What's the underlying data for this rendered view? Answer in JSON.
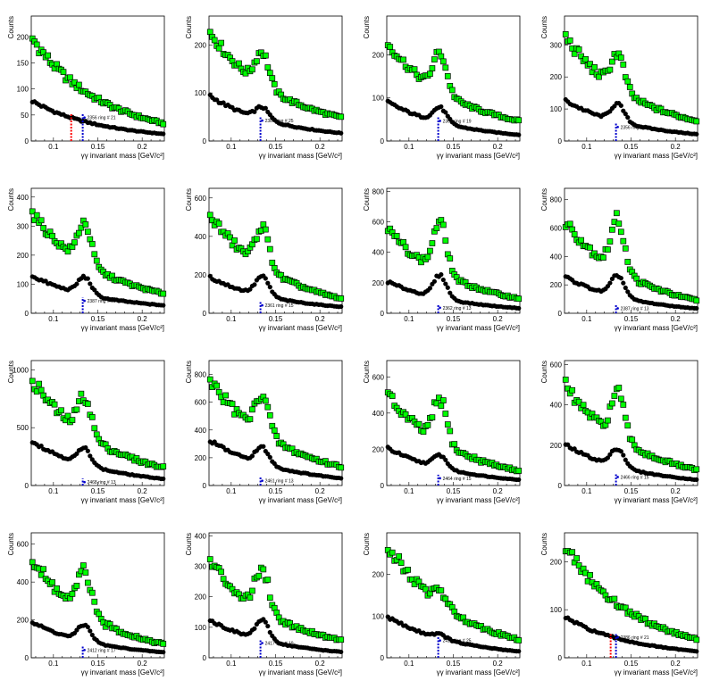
{
  "common": {
    "xlabel": "γγ invariant mass [GeV/c²]",
    "ylabel": "Counts",
    "xlim": [
      0.075,
      0.225
    ],
    "xticks": [
      0.1,
      0.15,
      0.2
    ],
    "xticklabels": [
      "0.1",
      "0.15",
      "0.2"
    ],
    "colors": {
      "upper": "#00ff00",
      "lower": "#000000",
      "marker_red": "#ff0000",
      "marker_blue": "#0000cc"
    }
  },
  "chart_data": [
    {
      "type": "scatter",
      "ylim": [
        0,
        240
      ],
      "yticks": [
        0,
        50,
        100,
        150,
        200
      ],
      "upper": {
        "base": 200,
        "end": 35,
        "peak": 0,
        "noise": 12
      },
      "lower": {
        "base": 78,
        "end": 14,
        "peak": 0
      },
      "annotation": "2356  ring # 21",
      "markers": [
        {
          "x": 0.12,
          "color": "red"
        },
        {
          "x": 0.133,
          "color": "blue"
        }
      ],
      "marker_height": 52
    },
    {
      "type": "scatter",
      "ylim": [
        0,
        260
      ],
      "yticks": [
        0,
        100,
        200
      ],
      "upper": {
        "base": 230,
        "end": 50,
        "peak": 70,
        "noise": 10
      },
      "lower": {
        "base": 95,
        "end": 17,
        "peak": 25
      },
      "annotation": "2386  ring # 25",
      "markers": [
        {
          "x": 0.133,
          "color": "blue"
        }
      ],
      "marker_height": 50
    },
    {
      "type": "scatter",
      "ylim": [
        0,
        290
      ],
      "yticks": [
        0,
        100,
        200
      ],
      "upper": {
        "base": 230,
        "end": 48,
        "peak": 90,
        "noise": 10
      },
      "lower": {
        "base": 92,
        "end": 15,
        "peak": 35
      },
      "annotation": "2360  ring # 19",
      "markers": [
        {
          "x": 0.133,
          "color": "blue"
        }
      ],
      "marker_height": 55
    },
    {
      "type": "scatter",
      "ylim": [
        0,
        390
      ],
      "yticks": [
        0,
        100,
        200,
        300
      ],
      "upper": {
        "base": 330,
        "end": 65,
        "peak": 110,
        "noise": 12
      },
      "lower": {
        "base": 128,
        "end": 22,
        "peak": 55
      },
      "annotation": "2356  ring # 17",
      "markers": [
        {
          "x": 0.133,
          "color": "blue"
        }
      ],
      "marker_height": 55
    },
    {
      "type": "scatter",
      "ylim": [
        0,
        430
      ],
      "yticks": [
        0,
        100,
        200,
        300,
        400
      ],
      "upper": {
        "base": 350,
        "end": 70,
        "peak": 140,
        "noise": 10
      },
      "lower": {
        "base": 130,
        "end": 28,
        "peak": 60
      },
      "annotation": "2387  ring # 15",
      "markers": [
        {
          "x": 0.133,
          "color": "blue"
        }
      ],
      "marker_height": 55
    },
    {
      "type": "scatter",
      "ylim": [
        0,
        650
      ],
      "yticks": [
        0,
        200,
        400,
        600
      ],
      "upper": {
        "base": 520,
        "end": 80,
        "peak": 210,
        "noise": 12
      },
      "lower": {
        "base": 190,
        "end": 35,
        "peak": 100
      },
      "annotation": "2361  ring # 15",
      "markers": [
        {
          "x": 0.133,
          "color": "blue"
        }
      ],
      "marker_height": 60
    },
    {
      "type": "scatter",
      "ylim": [
        0,
        820
      ],
      "yticks": [
        0,
        200,
        400,
        600,
        800
      ],
      "upper": {
        "base": 560,
        "end": 100,
        "peak": 330,
        "noise": 12
      },
      "lower": {
        "base": 210,
        "end": 35,
        "peak": 150
      },
      "annotation": "2362  ring # 13",
      "markers": [
        {
          "x": 0.133,
          "color": "blue"
        }
      ],
      "marker_height": 60
    },
    {
      "type": "scatter",
      "ylim": [
        0,
        880
      ],
      "yticks": [
        0,
        200,
        400,
        600,
        800
      ],
      "upper": {
        "base": 660,
        "end": 95,
        "peak": 360,
        "noise": 14
      },
      "lower": {
        "base": 260,
        "end": 35,
        "peak": 150
      },
      "annotation": "2387  ring # 13",
      "markers": [
        {
          "x": 0.133,
          "color": "blue"
        }
      ],
      "marker_height": 60
    },
    {
      "type": "scatter",
      "ylim": [
        0,
        1080
      ],
      "yticks": [
        0,
        500,
        1000
      ],
      "upper": {
        "base": 930,
        "end": 160,
        "peak": 330,
        "noise": 14
      },
      "lower": {
        "base": 390,
        "end": 60,
        "peak": 140
      },
      "annotation": "2468  ring # 13",
      "markers": [
        {
          "x": 0.133,
          "color": "blue"
        }
      ],
      "marker_height": 60
    },
    {
      "type": "scatter",
      "ylim": [
        0,
        900
      ],
      "yticks": [
        0,
        200,
        400,
        600,
        800
      ],
      "upper": {
        "base": 780,
        "end": 140,
        "peak": 290,
        "noise": 14
      },
      "lower": {
        "base": 330,
        "end": 55,
        "peak": 120
      },
      "annotation": "2461  ring # 13",
      "markers": [
        {
          "x": 0.133,
          "color": "blue"
        }
      ],
      "marker_height": 60
    },
    {
      "type": "scatter",
      "ylim": [
        0,
        690
      ],
      "yticks": [
        0,
        200,
        400,
        600
      ],
      "upper": {
        "base": 500,
        "end": 85,
        "peak": 240,
        "noise": 16
      },
      "lower": {
        "base": 210,
        "end": 33,
        "peak": 70
      },
      "annotation": "2464  ring # 15",
      "markers": [
        {
          "x": 0.133,
          "color": "blue"
        }
      ],
      "marker_height": 60
    },
    {
      "type": "scatter",
      "ylim": [
        0,
        620
      ],
      "yticks": [
        0,
        200,
        400,
        600
      ],
      "upper": {
        "base": 500,
        "end": 80,
        "peak": 230,
        "noise": 14
      },
      "lower": {
        "base": 205,
        "end": 30,
        "peak": 90
      },
      "annotation": "2466  ring # 15",
      "markers": [
        {
          "x": 0.133,
          "color": "blue"
        }
      ],
      "marker_height": 60
    },
    {
      "type": "scatter",
      "ylim": [
        0,
        660
      ],
      "yticks": [
        0,
        200,
        400,
        600
      ],
      "upper": {
        "base": 520,
        "end": 75,
        "peak": 220,
        "noise": 16
      },
      "lower": {
        "base": 190,
        "end": 30,
        "peak": 85
      },
      "annotation": "2412  ring # 17",
      "markers": [
        {
          "x": 0.133,
          "color": "blue"
        }
      ],
      "marker_height": 60
    },
    {
      "type": "scatter",
      "ylim": [
        0,
        410
      ],
      "yticks": [
        0,
        100,
        200,
        300,
        400
      ],
      "upper": {
        "base": 320,
        "end": 60,
        "peak": 140,
        "noise": 14
      },
      "lower": {
        "base": 125,
        "end": 20,
        "peak": 65
      },
      "annotation": "2417  ring # 19",
      "markers": [
        {
          "x": 0.133,
          "color": "blue"
        }
      ],
      "marker_height": 60
    },
    {
      "type": "scatter",
      "ylim": [
        0,
        300
      ],
      "yticks": [
        0,
        100,
        200
      ],
      "upper": {
        "base": 275,
        "end": 45,
        "peak": 30,
        "noise": 12
      },
      "lower": {
        "base": 100,
        "end": 16,
        "peak": 10
      },
      "annotation": "2419  ring # 25",
      "markers": [
        {
          "x": 0.133,
          "color": "blue"
        }
      ],
      "marker_height": 50
    },
    {
      "type": "scatter",
      "ylim": [
        0,
        260
      ],
      "yticks": [
        0,
        100,
        200
      ],
      "upper": {
        "base": 235,
        "end": 40,
        "peak": 0,
        "noise": 12
      },
      "lower": {
        "base": 85,
        "end": 14,
        "peak": 0
      },
      "annotation": "2386  ring # 21",
      "markers": [
        {
          "x": 0.127,
          "color": "red"
        },
        {
          "x": 0.133,
          "color": "blue"
        }
      ],
      "marker_height": 50
    }
  ]
}
